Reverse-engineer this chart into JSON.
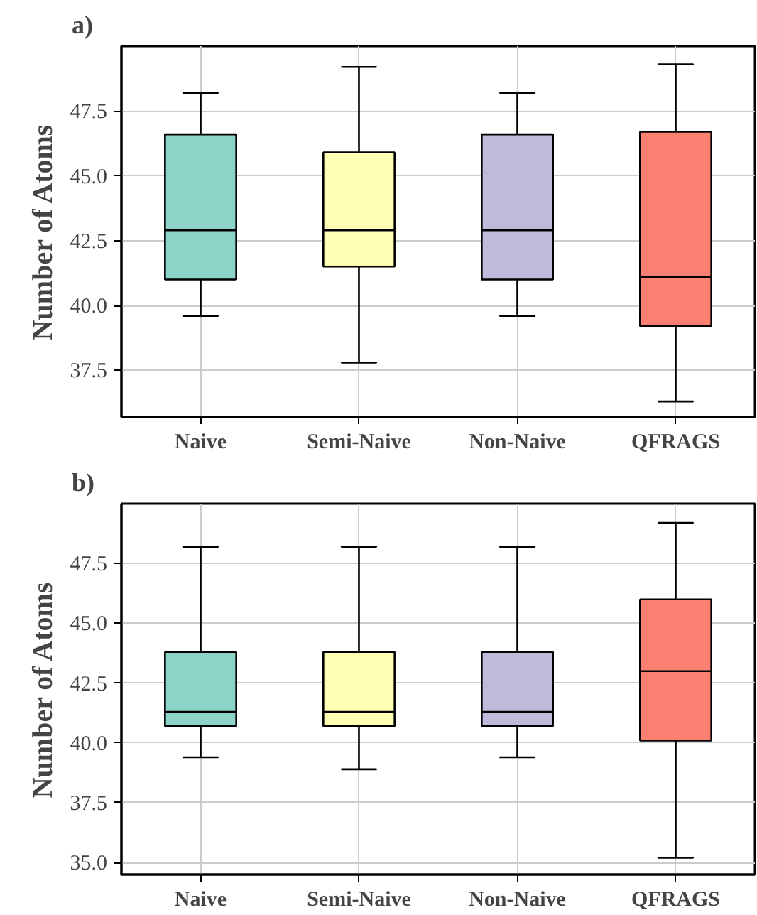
{
  "chart_data": [
    {
      "type": "box",
      "title": "a)",
      "ylabel": "Number of Atoms",
      "categories": [
        "Naive",
        "Semi-Naive",
        "Non-Naive",
        "QFRAGS"
      ],
      "colors": [
        "#8dd3c7",
        "#ffffb3",
        "#bebada",
        "#fb8072"
      ],
      "boxes": [
        {
          "low": 39.6,
          "q1": 41.0,
          "median": 42.9,
          "q3": 46.6,
          "high": 48.2
        },
        {
          "low": 37.8,
          "q1": 41.5,
          "median": 42.9,
          "q3": 45.9,
          "high": 49.2
        },
        {
          "low": 39.6,
          "q1": 41.0,
          "median": 42.9,
          "q3": 46.6,
          "high": 48.2
        },
        {
          "low": 36.3,
          "q1": 39.2,
          "median": 41.1,
          "q3": 46.7,
          "high": 49.3
        }
      ],
      "ylim": [
        35.7,
        50.0
      ],
      "yticks": [
        37.5,
        {
          "value": 40,
          "label": "40.0"
        },
        42.5,
        {
          "value": 45,
          "label": "45.0"
        },
        47.5
      ],
      "grid": true
    },
    {
      "type": "box",
      "title": "b)",
      "ylabel": "Number of Atoms",
      "categories": [
        "Naive",
        "Semi-Naive",
        "Non-Naive",
        "QFRAGS"
      ],
      "colors": [
        "#8dd3c7",
        "#ffffb3",
        "#bebada",
        "#fb8072"
      ],
      "boxes": [
        {
          "low": 39.4,
          "q1": 40.7,
          "median": 41.3,
          "q3": 43.8,
          "high": 48.2
        },
        {
          "low": 38.9,
          "q1": 40.7,
          "median": 41.3,
          "q3": 43.8,
          "high": 48.2
        },
        {
          "low": 39.4,
          "q1": 40.7,
          "median": 41.3,
          "q3": 43.8,
          "high": 48.2
        },
        {
          "low": 35.2,
          "q1": 40.1,
          "median": 43.0,
          "q3": 46.0,
          "high": 49.2
        }
      ],
      "ylim": [
        34.5,
        50.0
      ],
      "yticks": [
        {
          "value": 35,
          "label": "35.0"
        },
        37.5,
        {
          "value": 40,
          "label": "40.0"
        },
        42.5,
        {
          "value": 45,
          "label": "45.0"
        },
        47.5
      ],
      "grid": true
    }
  ]
}
